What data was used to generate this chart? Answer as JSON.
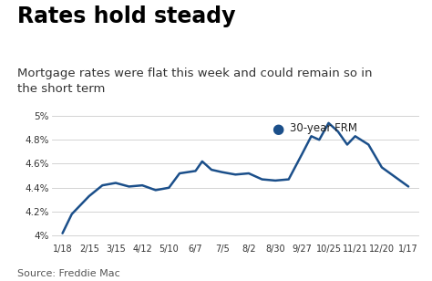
{
  "title": "Rates hold steady",
  "subtitle": "Mortgage rates were flat this week and could remain so in\nthe short term",
  "source": "Source: Freddie Mac",
  "legend_label": "30-year FRM",
  "line_color": "#1b4f8a",
  "dot_color": "#1b4f8a",
  "x_labels": [
    "1/18",
    "2/15",
    "3/15",
    "4/12",
    "5/10",
    "6/7",
    "7/5",
    "8/2",
    "8/30",
    "9/27",
    "10/25",
    "11/21",
    "12/20",
    "1/17"
  ],
  "x_data": [
    0,
    0.35,
    1,
    1.5,
    2,
    2.5,
    3,
    3.5,
    4,
    4.4,
    5,
    5.25,
    5.6,
    6,
    6.5,
    7,
    7.5,
    8,
    8.5,
    9,
    9.35,
    9.65,
    10,
    10.35,
    10.7,
    11,
    11.5,
    12,
    13
  ],
  "y_data": [
    4.02,
    4.18,
    4.33,
    4.42,
    4.44,
    4.41,
    4.42,
    4.38,
    4.4,
    4.52,
    4.54,
    4.62,
    4.55,
    4.53,
    4.51,
    4.52,
    4.47,
    4.46,
    4.47,
    4.68,
    4.83,
    4.8,
    4.94,
    4.87,
    4.76,
    4.83,
    4.76,
    4.57,
    4.41
  ],
  "ylim": [
    3.95,
    5.05
  ],
  "yticks": [
    4.0,
    4.2,
    4.4,
    4.6,
    4.8,
    5.0
  ],
  "ytick_labels": [
    "4%",
    "4.2%",
    "4.4%",
    "4.6%",
    "4.8%",
    "5%"
  ],
  "xlim": [
    -0.4,
    13.4
  ],
  "title_fontsize": 17,
  "subtitle_fontsize": 9.5,
  "source_fontsize": 8,
  "tick_fontsize": 7.5,
  "legend_fontsize": 8.5
}
